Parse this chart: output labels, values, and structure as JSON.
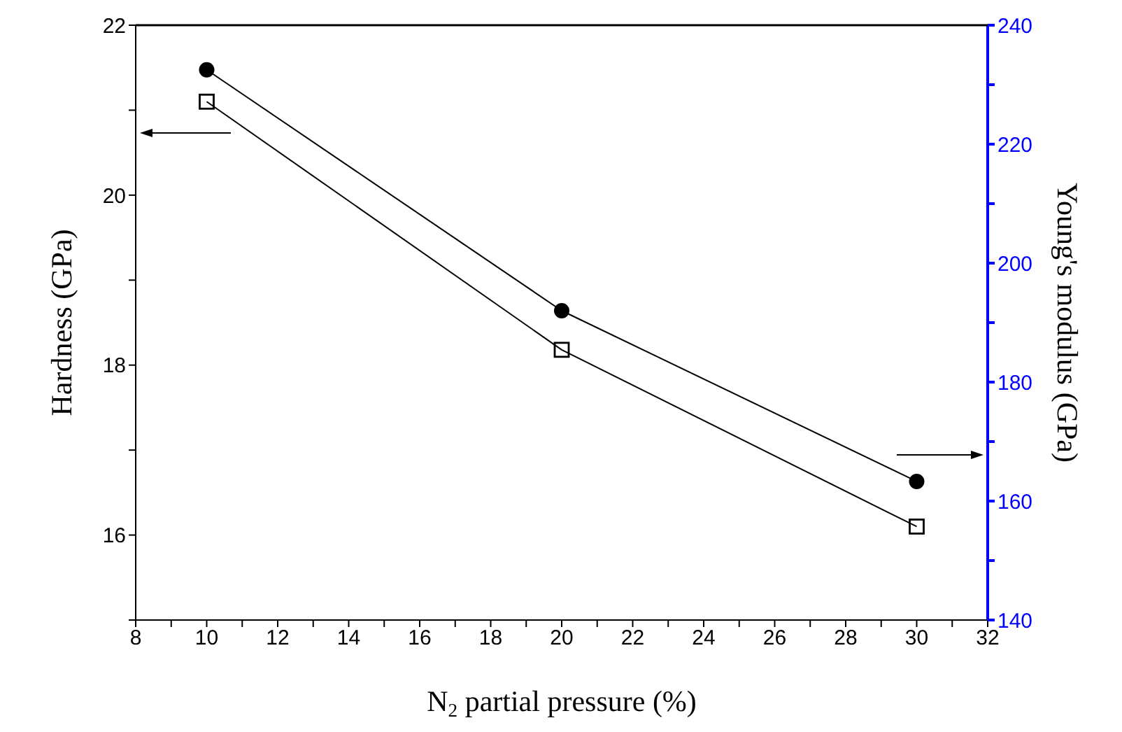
{
  "chart_data": {
    "type": "line",
    "xlabel": "N$_{2}$ partial pressure (%)",
    "ylabel": "Hardness (GPa)",
    "y2label": "Young's modulus (GPa)",
    "x": [
      10,
      20,
      30
    ],
    "series": [
      {
        "color": "#000000",
        "marker": "square",
        "values": [
          21.1,
          18.18,
          16.1
        ]
      },
      {
        "color": "#000000",
        "marker": "circle",
        "axis": "y2",
        "values": [
          232.5,
          192,
          163.3
        ]
      }
    ],
    "xlim": [
      8,
      32
    ],
    "xticks": [
      8,
      {
        "value": 9,
        "label": null
      },
      10,
      {
        "value": 11,
        "label": null
      },
      12,
      {
        "value": 13,
        "label": null
      },
      14,
      {
        "value": 15,
        "label": null
      },
      16,
      {
        "value": 17,
        "label": null
      },
      18,
      {
        "value": 19,
        "label": null
      },
      20,
      {
        "value": 21,
        "label": null
      },
      22,
      {
        "value": 23,
        "label": null
      },
      24,
      {
        "value": 25,
        "label": null
      },
      26,
      {
        "value": 27,
        "label": null
      },
      28,
      {
        "value": 29,
        "label": null
      },
      30,
      {
        "value": 31,
        "label": null
      },
      32
    ],
    "ylim": [
      15,
      22
    ],
    "yticks": [
      {
        "value": 15,
        "label": null
      },
      16,
      {
        "value": 17,
        "label": null
      },
      18,
      {
        "value": 19,
        "label": null
      },
      20,
      {
        "value": 21,
        "label": null
      },
      22
    ],
    "y2lim": [
      140,
      240
    ],
    "y2ticks": [
      140,
      {
        "value": 150,
        "label": null
      },
      160,
      {
        "value": 170,
        "label": null
      },
      180,
      {
        "value": 190,
        "label": null
      },
      200,
      {
        "value": 210,
        "label": null
      },
      220,
      {
        "value": 230,
        "label": null
      },
      240
    ],
    "grid": false,
    "legend": false,
    "line_style": "solid"
  }
}
